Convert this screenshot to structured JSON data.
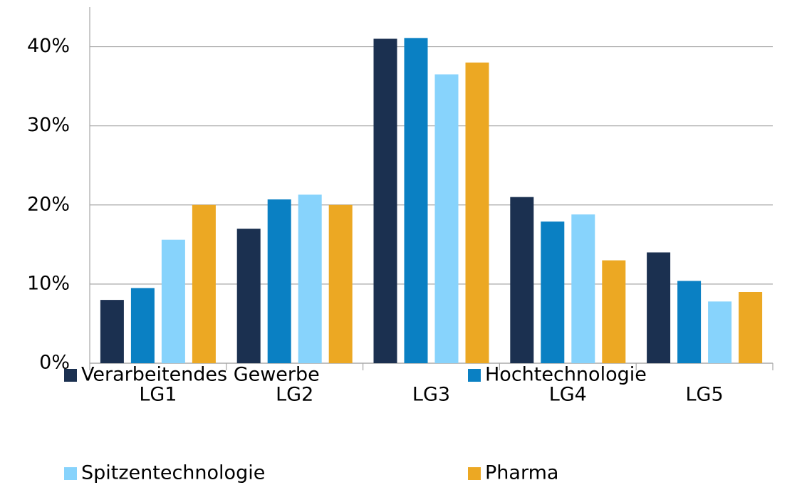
{
  "chart_data": {
    "type": "bar",
    "categories": [
      "LG1",
      "LG2",
      "LG3",
      "LG4",
      "LG5"
    ],
    "series": [
      {
        "name": "Verarbeitendes Gewerbe",
        "color": "#1b3050",
        "values": [
          8,
          17,
          41,
          21,
          14
        ]
      },
      {
        "name": "Hochtechnologie",
        "color": "#0a80c3",
        "values": [
          9.5,
          20.7,
          41.1,
          17.9,
          10.4
        ]
      },
      {
        "name": "Spitzentechnologie",
        "color": "#87d3fc",
        "values": [
          15.6,
          21.3,
          36.5,
          18.8,
          7.8
        ]
      },
      {
        "name": "Pharma",
        "color": "#eca823",
        "values": [
          20,
          20,
          38,
          13,
          9
        ]
      }
    ],
    "ylim": [
      0,
      45
    ],
    "yticks": [
      {
        "value": 0,
        "label": "0%"
      },
      {
        "value": 10,
        "label": "10%"
      },
      {
        "value": 20,
        "label": "20%"
      },
      {
        "value": 30,
        "label": "30%"
      },
      {
        "value": 40,
        "label": "40%"
      }
    ],
    "grid": true,
    "legend": "bottom"
  }
}
